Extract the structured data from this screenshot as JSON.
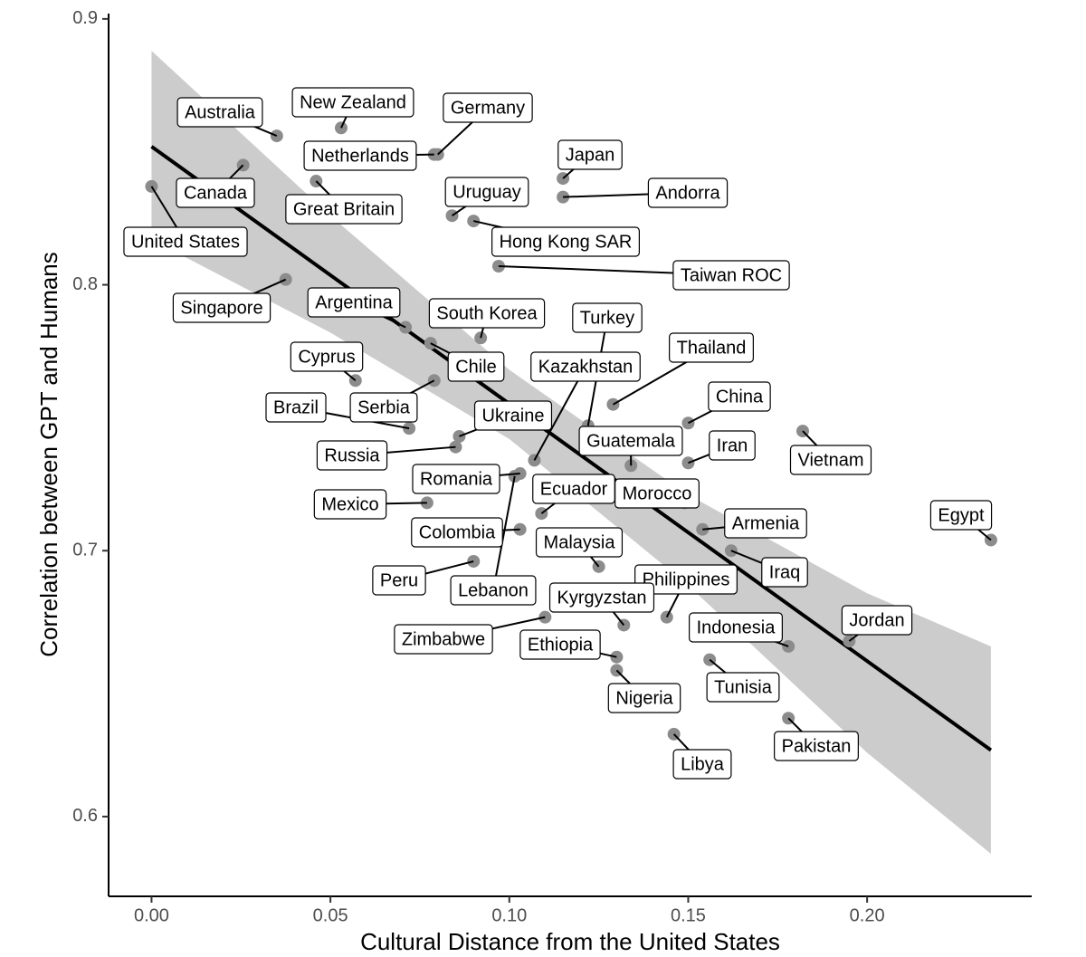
{
  "chart_data": {
    "type": "scatter",
    "x_label": "Cultural Distance from the United States",
    "y_label": "Correlation between GPT and Humans",
    "xlim": [
      -0.012,
      0.246
    ],
    "ylim": [
      0.57,
      0.902
    ],
    "xticks": [
      {
        "value": 0,
        "label": "0.00"
      },
      {
        "value": 0.05,
        "label": "0.05"
      },
      {
        "value": 0.1,
        "label": "0.10"
      },
      {
        "value": 0.15,
        "label": "0.15"
      },
      {
        "value": 0.2,
        "label": "0.20"
      }
    ],
    "yticks": [
      0.6,
      0.7,
      0.8,
      0.9
    ],
    "point_color": "#8c8c8c",
    "point_labels": [
      "United States",
      "Canada",
      "Australia",
      "New Zealand",
      "Great Britain",
      "Netherlands",
      "Germany",
      "Singapore",
      "Argentina",
      "Chile",
      "South Korea",
      "Uruguay",
      "Hong Kong SAR",
      "Taiwan ROC",
      "Japan",
      "Andorra",
      "Cyprus",
      "Serbia",
      "Brazil",
      "Ukraine",
      "Russia",
      "Romania",
      "Lebanon",
      "Mexico",
      "Colombia",
      "Peru",
      "Kazakhstan",
      "Turkey",
      "Ecuador",
      "Thailand",
      "Guatemala",
      "Morocco",
      "China",
      "Iran",
      "Vietnam",
      "Armenia",
      "Iraq",
      "Malaysia",
      "Philippines",
      "Kyrgyzstan",
      "Zimbabwe",
      "Ethiopia",
      "Nigeria",
      "Indonesia",
      "Jordan",
      "Tunisia",
      "Pakistan",
      "Libya",
      "Egypt"
    ],
    "x": [
      0.0,
      0.0256,
      0.035,
      0.053,
      0.046,
      0.079,
      0.08,
      0.0375,
      0.071,
      0.078,
      0.092,
      0.084,
      0.09,
      0.097,
      0.115,
      0.115,
      0.057,
      0.079,
      0.072,
      0.086,
      0.085,
      0.103,
      0.1015,
      0.077,
      0.103,
      0.09,
      0.107,
      0.122,
      0.109,
      0.129,
      0.134,
      0.149,
      0.15,
      0.15,
      0.182,
      0.154,
      0.162,
      0.125,
      0.144,
      0.132,
      0.11,
      0.13,
      0.13,
      0.178,
      0.195,
      0.156,
      0.178,
      0.146,
      0.2346
    ],
    "values": [
      0.837,
      0.845,
      0.856,
      0.859,
      0.839,
      0.849,
      0.849,
      0.802,
      0.784,
      0.778,
      0.78,
      0.826,
      0.824,
      0.807,
      0.84,
      0.833,
      0.764,
      0.764,
      0.746,
      0.743,
      0.739,
      0.729,
      0.728,
      0.718,
      0.708,
      0.696,
      0.734,
      0.747,
      0.714,
      0.755,
      0.732,
      0.718,
      0.748,
      0.733,
      0.745,
      0.708,
      0.7,
      0.694,
      0.675,
      0.672,
      0.675,
      0.66,
      0.655,
      0.664,
      0.666,
      0.659,
      0.637,
      0.631,
      0.704
    ],
    "fit": {
      "color": "#000000",
      "x": [
        0.0,
        0.2346
      ],
      "values": [
        0.852,
        0.625
      ]
    },
    "band": {
      "color": "#cccccc",
      "x": [
        0.0,
        0.05,
        0.1,
        0.15,
        0.2,
        0.2346
      ],
      "upper": [
        0.888,
        0.826,
        0.768,
        0.721,
        0.684,
        0.664
      ],
      "lower": [
        0.817,
        0.782,
        0.742,
        0.687,
        0.624,
        0.586
      ]
    }
  }
}
